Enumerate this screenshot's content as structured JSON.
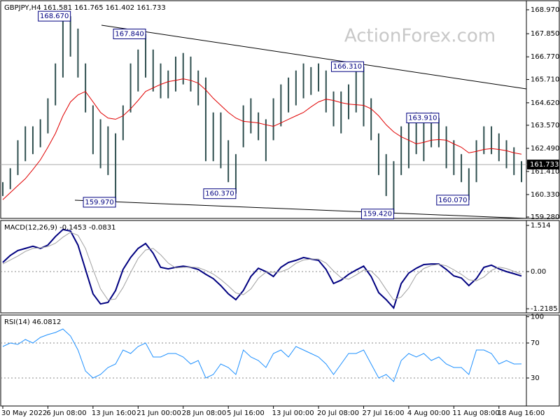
{
  "chart_data": [
    {
      "type": "ohlc",
      "title": "GBPJPY,H4  161.581 161.765 161.402 161.733",
      "watermark": "ActionForex.com",
      "color": "#2f4f4f",
      "high": [
        160.91,
        161.56,
        162.87,
        163.52,
        163.52,
        163.85,
        164.83,
        166.46,
        168.58,
        168.67,
        168.09,
        166.46,
        164.5,
        163.85,
        163.52,
        163.19,
        164.5,
        166.46,
        167.11,
        167.84,
        167.11,
        166.46,
        166.13,
        166.78,
        166.95,
        166.78,
        166.13,
        165.8,
        164.17,
        164.17,
        162.87,
        162.22,
        164.5,
        164.83,
        164.17,
        163.85,
        164.83,
        165.48,
        165.8,
        166.13,
        166.46,
        166.29,
        166.46,
        166.13,
        165.15,
        165.15,
        165.48,
        166.13,
        166.31,
        164.83,
        163.19,
        162.22,
        161.89,
        163.52,
        163.85,
        164.17,
        163.85,
        164.17,
        163.91,
        163.52,
        162.87,
        162.22,
        161.56,
        162.87,
        163.52,
        163.52,
        163.19,
        162.87,
        162.54,
        161.89
      ],
      "low": [
        160.26,
        160.58,
        161.24,
        161.89,
        162.22,
        162.54,
        163.19,
        164.5,
        165.8,
        166.78,
        165.8,
        164.17,
        162.22,
        161.56,
        161.24,
        159.97,
        162.87,
        164.17,
        165.15,
        165.8,
        165.15,
        164.83,
        164.83,
        165.15,
        165.48,
        165.15,
        164.5,
        161.89,
        161.89,
        161.56,
        160.91,
        160.37,
        162.54,
        163.19,
        162.87,
        161.89,
        162.87,
        163.52,
        164.17,
        164.5,
        164.83,
        164.99,
        165.15,
        164.17,
        163.52,
        163.19,
        163.85,
        164.17,
        163.52,
        162.87,
        161.24,
        160.26,
        159.42,
        161.24,
        161.56,
        162.22,
        161.89,
        162.54,
        162.54,
        161.56,
        161.24,
        160.91,
        160.07,
        160.91,
        162.22,
        162.22,
        161.89,
        161.56,
        161.24,
        160.91
      ],
      "series": [
        {
          "color": "#e00000",
          "values": [
            160.09,
            160.42,
            160.75,
            161.07,
            161.5,
            161.95,
            162.54,
            163.19,
            164.01,
            164.66,
            164.99,
            165.15,
            164.66,
            164.17,
            163.91,
            163.85,
            164.01,
            164.34,
            164.73,
            165.15,
            165.32,
            165.48,
            165.61,
            165.67,
            165.74,
            165.67,
            165.54,
            165.22,
            164.83,
            164.5,
            164.17,
            163.91,
            163.75,
            163.72,
            163.68,
            163.59,
            163.52,
            163.68,
            163.85,
            164.01,
            164.17,
            164.43,
            164.66,
            164.79,
            164.73,
            164.63,
            164.56,
            164.53,
            164.5,
            164.34,
            164.01,
            163.59,
            163.26,
            163.03,
            162.87,
            162.7,
            162.77,
            162.87,
            162.9,
            162.87,
            162.7,
            162.54,
            162.28,
            162.35,
            162.44,
            162.48,
            162.44,
            162.38,
            162.28,
            162.22
          ]
        }
      ],
      "ylim": [
        159.215,
        169.394
      ],
      "yticks": [
        {
          "value": 168.97,
          "label": "168.970"
        },
        {
          "value": 167.85,
          "label": "167.850"
        },
        {
          "value": 166.77,
          "label": "166.770"
        },
        {
          "value": 165.71,
          "label": "165.710"
        },
        {
          "value": 164.62,
          "label": "164.620"
        },
        {
          "value": 163.57,
          "label": "163.570"
        },
        {
          "value": 162.49,
          "label": "162.490"
        },
        {
          "value": 161.41,
          "label": "161.410"
        },
        {
          "value": 160.33,
          "label": "160.330"
        },
        {
          "value": 159.28,
          "label": "159.280"
        }
      ],
      "last": {
        "value": 161.733,
        "label": "161.733"
      },
      "annotations": [
        {
          "value": 168.67,
          "label": "168.670"
        },
        {
          "value": 167.84,
          "label": "167.840"
        },
        {
          "value": 166.31,
          "label": "166.310"
        },
        {
          "value": 163.91,
          "label": "163.910"
        },
        {
          "value": 160.37,
          "label": "160.370"
        },
        {
          "value": 159.97,
          "label": "159.970"
        },
        {
          "value": 159.42,
          "label": "159.420"
        },
        {
          "value": 160.07,
          "label": "160.070"
        }
      ]
    },
    {
      "type": "line",
      "title": "MACD(12,26,9) -0.1453 -0.0831",
      "series": [
        {
          "color": "#000080",
          "values": [
            0.3,
            0.53,
            0.69,
            0.76,
            0.83,
            0.76,
            0.87,
            1.15,
            1.38,
            1.33,
            0.87,
            0.07,
            -0.73,
            -1.06,
            -1.01,
            -0.62,
            0.07,
            0.46,
            0.76,
            0.92,
            0.6,
            0.14,
            0.09,
            0.14,
            0.18,
            0.14,
            0.07,
            -0.09,
            -0.23,
            -0.46,
            -0.73,
            -0.92,
            -0.62,
            -0.16,
            0.11,
            0.0,
            -0.16,
            0.14,
            0.3,
            0.37,
            0.46,
            0.41,
            0.37,
            0.07,
            -0.39,
            -0.28,
            -0.09,
            0.05,
            0.18,
            -0.16,
            -0.69,
            -0.92,
            -1.19,
            -0.39,
            -0.05,
            0.11,
            0.23,
            0.25,
            0.25,
            0.07,
            -0.14,
            -0.21,
            -0.46,
            -0.23,
            0.14,
            0.21,
            0.09,
            0.0,
            -0.07,
            -0.1453
          ]
        },
        {
          "color": "#a0a0a0",
          "values": [
            0.25,
            0.38,
            0.51,
            0.66,
            0.76,
            0.78,
            0.82,
            0.93,
            1.13,
            1.29,
            1.19,
            0.76,
            0.07,
            -0.57,
            -0.93,
            -0.9,
            -0.52,
            -0.03,
            0.43,
            0.71,
            0.76,
            0.55,
            0.28,
            0.12,
            0.14,
            0.15,
            0.13,
            0.04,
            -0.08,
            -0.26,
            -0.47,
            -0.7,
            -0.76,
            -0.57,
            -0.22,
            -0.02,
            -0.02,
            -0.01,
            0.09,
            0.27,
            0.38,
            0.41,
            0.41,
            0.28,
            0.02,
            -0.2,
            -0.25,
            -0.11,
            0.05,
            0.02,
            -0.22,
            -0.59,
            -0.93,
            -0.83,
            -0.54,
            -0.11,
            0.1,
            0.2,
            0.24,
            0.19,
            0.06,
            -0.09,
            -0.27,
            -0.3,
            -0.18,
            0.04,
            0.15,
            0.1,
            0.01,
            -0.0831
          ]
        }
      ],
      "ylim": [
        -1.354,
        1.675
      ],
      "yticks": [
        1.514,
        {
          "value": 0,
          "label": "0.00"
        },
        -1.2185
      ],
      "levels": [
        0
      ]
    },
    {
      "type": "line",
      "title": "RSI(14) 46.0812",
      "series": [
        {
          "color": "#1e90ff",
          "values": [
            66,
            70,
            68.4,
            74,
            70,
            76.4,
            79.6,
            82,
            86,
            78,
            62,
            38,
            30,
            34,
            42,
            46,
            62,
            58,
            66,
            70,
            54,
            54,
            58,
            58,
            54,
            46,
            50,
            30,
            34,
            46,
            42,
            34,
            62,
            54,
            50,
            42,
            58,
            62,
            54,
            66,
            62,
            58,
            54,
            46,
            34,
            46,
            58,
            58,
            62,
            46,
            30,
            34,
            26,
            50,
            58,
            54,
            58,
            50,
            54,
            46,
            42,
            42,
            34,
            62,
            62,
            58,
            46,
            50,
            46,
            46.0812
          ]
        }
      ],
      "ylim": [
        -2,
        102
      ],
      "yticks": [
        100,
        70,
        30
      ],
      "levels": [
        70,
        30
      ],
      "categories": [
        "30 May 2022",
        null,
        null,
        null,
        null,
        null,
        "6 Jun 08:00",
        null,
        null,
        null,
        null,
        null,
        "13 Jun 16:00",
        null,
        null,
        null,
        null,
        null,
        "21 Jun 00:00",
        null,
        null,
        null,
        null,
        null,
        "28 Jun 08:00",
        null,
        null,
        null,
        null,
        null,
        "5 Jul 16:00",
        null,
        null,
        null,
        null,
        null,
        "13 Jul 00:00",
        null,
        null,
        null,
        null,
        null,
        "20 Jul 08:00",
        null,
        null,
        null,
        null,
        null,
        "27 Jul 16:00",
        null,
        null,
        null,
        null,
        null,
        "4 Aug 00:00",
        null,
        null,
        null,
        null,
        null,
        "11 Aug 08:00",
        null,
        null,
        null,
        null,
        null,
        "18 Aug 16:00",
        null,
        null,
        null
      ]
    }
  ]
}
